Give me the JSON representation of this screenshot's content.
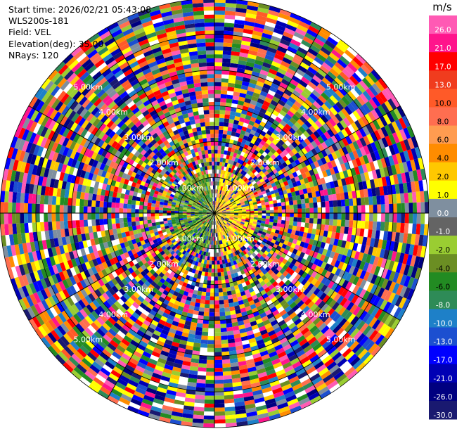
{
  "header": {
    "start_time": "Start time: 2026/02/21 05:43:08",
    "instrument": "WLS200s-181",
    "field": "Field: VEL",
    "elevation": "Elevation(deg): 35.00",
    "nrays": "NRays: 120"
  },
  "chart_data": {
    "type": "heatmap",
    "projection": "polar-ppi",
    "field": "VEL",
    "n_rays": 120,
    "elevation_deg": 35.0,
    "max_range_km": 6.0,
    "range_rings": [
      {
        "range_km": 1,
        "label": "1.00km"
      },
      {
        "range_km": 2,
        "label": "2.00km"
      },
      {
        "range_km": 3,
        "label": "3.00km"
      },
      {
        "range_km": 4,
        "label": "4.00km"
      },
      {
        "range_km": 5,
        "label": "5.00km"
      }
    ],
    "colorbar": {
      "unit": "m/s",
      "ticks": [
        "26.0",
        "21.0",
        "17.0",
        "13.0",
        "10.0",
        "8.0",
        "6.0",
        "4.0",
        "2.0",
        "1.0",
        "0.0",
        "-1.0",
        "-2.0",
        "-4.0",
        "-6.0",
        "-8.0",
        "-10.0",
        "-13.0",
        "-17.0",
        "-21.0",
        "-26.0",
        "-30.0"
      ],
      "colors": [
        "#ff5ab4",
        "#ff148c",
        "#ff0000",
        "#f03c1e",
        "#ff5a28",
        "#ff6e50",
        "#ff9c50",
        "#ff8c00",
        "#ffc800",
        "#ffff00",
        "#7f8f9f",
        "#646464",
        "#9acd32",
        "#6b8e23",
        "#228b22",
        "#2e8b57",
        "#1e80c8",
        "#1c4fd0",
        "#0000ff",
        "#0000b4",
        "#000080",
        "#191970"
      ]
    }
  }
}
